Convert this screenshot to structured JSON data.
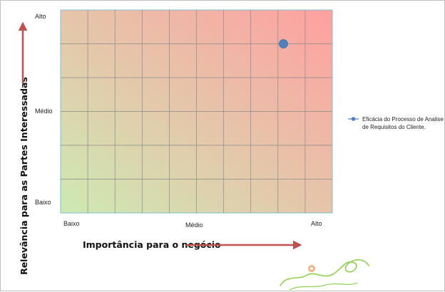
{
  "chart_data": {
    "type": "scatter",
    "xlabel": "Importância para o negócio",
    "ylabel": "Relevância para as Partes Interessadas",
    "x_ticks": [
      "Baixo",
      "Médio",
      "Alto"
    ],
    "y_ticks": [
      "Alto",
      "Médio",
      "Baixo"
    ],
    "xlim": [
      0,
      10
    ],
    "ylim": [
      0,
      6
    ],
    "grid": true,
    "legend_position": "right",
    "background": {
      "type": "gradient",
      "from_color": "#cdeab3",
      "to_color": "#ffa0a0",
      "direction": "bottom-left to top-right"
    },
    "series": [
      {
        "name": "Eficácia do Processo de Analise de Requisitos do Cliente.",
        "color": "#4f81bd",
        "points": [
          {
            "x": 8.2,
            "y": 5.0
          }
        ]
      }
    ],
    "legend_lines": [
      "Eficácia do Processo de Analise",
      "de Requisitos do Cliente."
    ]
  },
  "colors": {
    "grid": "#8a8a8a",
    "arrow": "#c0504d",
    "decoration": "#92d050",
    "decoration_accent": "#f4b183"
  }
}
